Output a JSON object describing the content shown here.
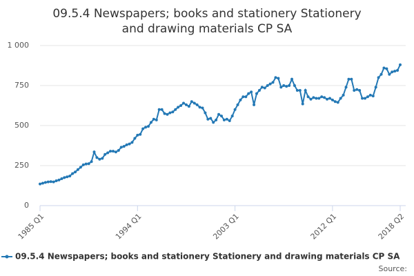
{
  "chart_data": {
    "type": "line",
    "title": "09.5.4 Newspapers; books and stationery Stationery and drawing materials CP SA",
    "categories": [
      "1985 Q1",
      null,
      null,
      null,
      null,
      null,
      null,
      null,
      null,
      null,
      null,
      null,
      null,
      null,
      null,
      null,
      null,
      null,
      null,
      null,
      null,
      null,
      null,
      null,
      null,
      null,
      null,
      null,
      null,
      null,
      null,
      null,
      null,
      null,
      null,
      null,
      "1994 Q1",
      null,
      null,
      null,
      null,
      null,
      null,
      null,
      null,
      null,
      null,
      null,
      null,
      null,
      null,
      null,
      null,
      null,
      null,
      null,
      null,
      null,
      null,
      null,
      null,
      null,
      null,
      null,
      null,
      null,
      null,
      null,
      null,
      null,
      null,
      null,
      "2003 Q1",
      null,
      null,
      null,
      null,
      null,
      null,
      null,
      null,
      null,
      null,
      null,
      null,
      null,
      null,
      null,
      null,
      null,
      null,
      null,
      null,
      null,
      null,
      null,
      null,
      null,
      null,
      null,
      null,
      null,
      null,
      null,
      null,
      null,
      null,
      null,
      "2012 Q1",
      null,
      null,
      null,
      null,
      null,
      null,
      null,
      null,
      null,
      null,
      null,
      null,
      null,
      null,
      null,
      null,
      null,
      null,
      null,
      null,
      null,
      null,
      null,
      null,
      "2018 Q2"
    ],
    "series": [
      {
        "name": "09.5.4 Newspapers; books and stationery Stationery and drawing materials CP SA",
        "color": "#2378b5",
        "values": [
          135,
          140,
          145,
          148,
          150,
          148,
          155,
          160,
          168,
          175,
          180,
          185,
          200,
          210,
          225,
          240,
          255,
          260,
          262,
          275,
          335,
          300,
          290,
          295,
          320,
          330,
          340,
          340,
          335,
          345,
          365,
          370,
          380,
          385,
          395,
          420,
          440,
          445,
          480,
          490,
          495,
          520,
          540,
          535,
          600,
          600,
          575,
          570,
          580,
          585,
          600,
          615,
          625,
          640,
          630,
          620,
          650,
          640,
          630,
          615,
          610,
          580,
          540,
          545,
          520,
          535,
          570,
          560,
          535,
          540,
          530,
          560,
          600,
          630,
          660,
          680,
          680,
          700,
          710,
          630,
          700,
          720,
          740,
          735,
          750,
          760,
          770,
          800,
          795,
          740,
          750,
          745,
          750,
          790,
          750,
          720,
          720,
          635,
          720,
          680,
          665,
          675,
          670,
          670,
          680,
          675,
          665,
          670,
          660,
          650,
          645,
          670,
          690,
          740,
          790,
          790,
          720,
          725,
          720,
          670,
          670,
          680,
          690,
          685,
          740,
          800,
          820,
          860,
          855,
          820,
          835,
          840,
          845,
          880
        ]
      }
    ],
    "ylim": [
      0,
      1000
    ],
    "yticks": [
      0,
      250,
      500,
      750,
      {
        "value": 1000,
        "label": "1 000"
      }
    ],
    "grid": true,
    "legend": "bottom",
    "source": "Source:"
  }
}
